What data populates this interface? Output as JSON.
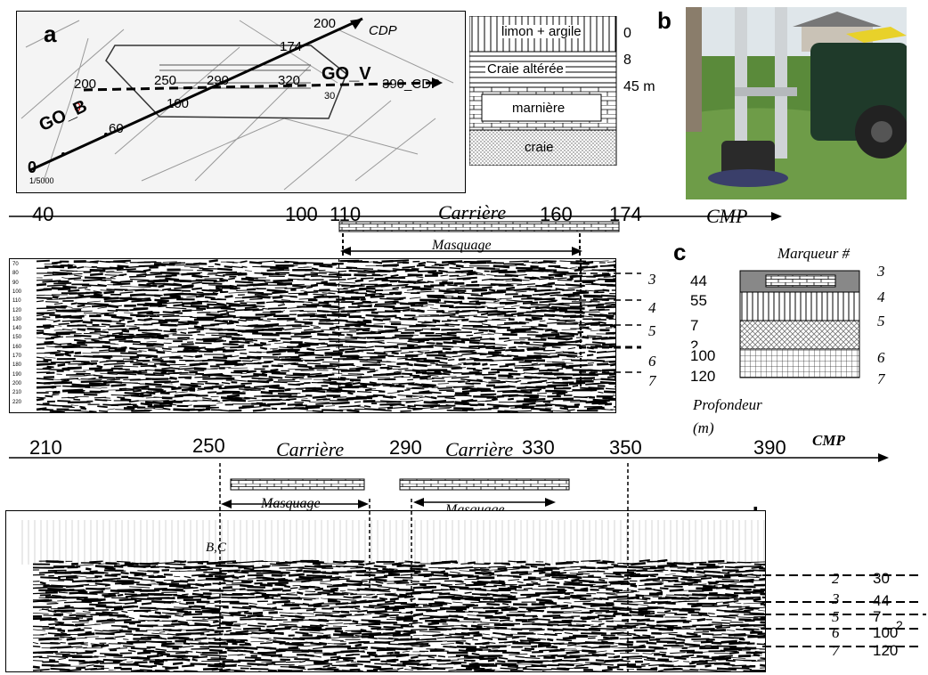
{
  "panel_a": {
    "letter": "a",
    "profile_b_label": "GO_B",
    "profile_v_label": "GO_V",
    "cdp_label_top": "CDP",
    "cdp_label_right": "390_CDP",
    "start_zero": "0",
    "red_zero": "0",
    "ticks": [
      "200",
      "174",
      "200",
      "250",
      "290",
      "320",
      "100",
      "60",
      "30"
    ],
    "scale_text": "1/5000"
  },
  "panel_strat": {
    "layers": [
      {
        "name": "limon + argile",
        "depth": "0"
      },
      {
        "name": "Craie altérée",
        "depth": "8"
      },
      {
        "name": "",
        "depth": "45 m"
      },
      {
        "name": "marnière",
        "depth": ""
      },
      {
        "name": "craie",
        "depth": ""
      }
    ]
  },
  "panel_b": {
    "letter": "b"
  },
  "panel_c": {
    "letter": "c",
    "axis_label": "CMP",
    "ticks": [
      "40",
      "100",
      "110",
      "160",
      "174"
    ],
    "quarry_label": "Carrière",
    "masking_label": "Masquage",
    "markers": [
      {
        "id": "3",
        "depth": "44"
      },
      {
        "id": "4",
        "depth": "55"
      },
      {
        "id": "5",
        "depth": "7"
      },
      {
        "id": "",
        "depth": "2"
      },
      {
        "id": "6",
        "depth": "100"
      },
      {
        "id": "7",
        "depth": "120"
      }
    ],
    "time_ticks": [
      "70",
      "80",
      "90",
      "100",
      "110",
      "120",
      "130",
      "140",
      "150",
      "160",
      "170",
      "180",
      "190",
      "200",
      "210",
      "220"
    ],
    "legend_title": "Marqueur #",
    "legend_ids": [
      "3",
      "4",
      "5",
      "6",
      "7"
    ],
    "depth_label_1": "Profondeur",
    "depth_label_2": "(m)"
  },
  "panel_d": {
    "letter": "d",
    "axis_label": "CMP",
    "ticks": [
      "210",
      "250",
      "290",
      "330",
      "350",
      "390"
    ],
    "quarry_label_1": "Carrière",
    "quarry_label_2": "Carrière",
    "masking_label_1": "Masquage",
    "masking_label_2": "Masquage",
    "bc_label": "B,C",
    "markers": [
      {
        "id": "2",
        "depth": "30"
      },
      {
        "id": "3",
        "depth": "44"
      },
      {
        "id": "5",
        "depth": "7"
      },
      {
        "id": "6",
        "depth": "100"
      },
      {
        "id": "",
        "depth": "2"
      },
      {
        "id": "7",
        "depth": "120"
      }
    ]
  },
  "colors": {
    "ink": "#000000",
    "red": "#cc0000",
    "grass": "#5a8a3a",
    "sky": "#dfe6ea"
  }
}
